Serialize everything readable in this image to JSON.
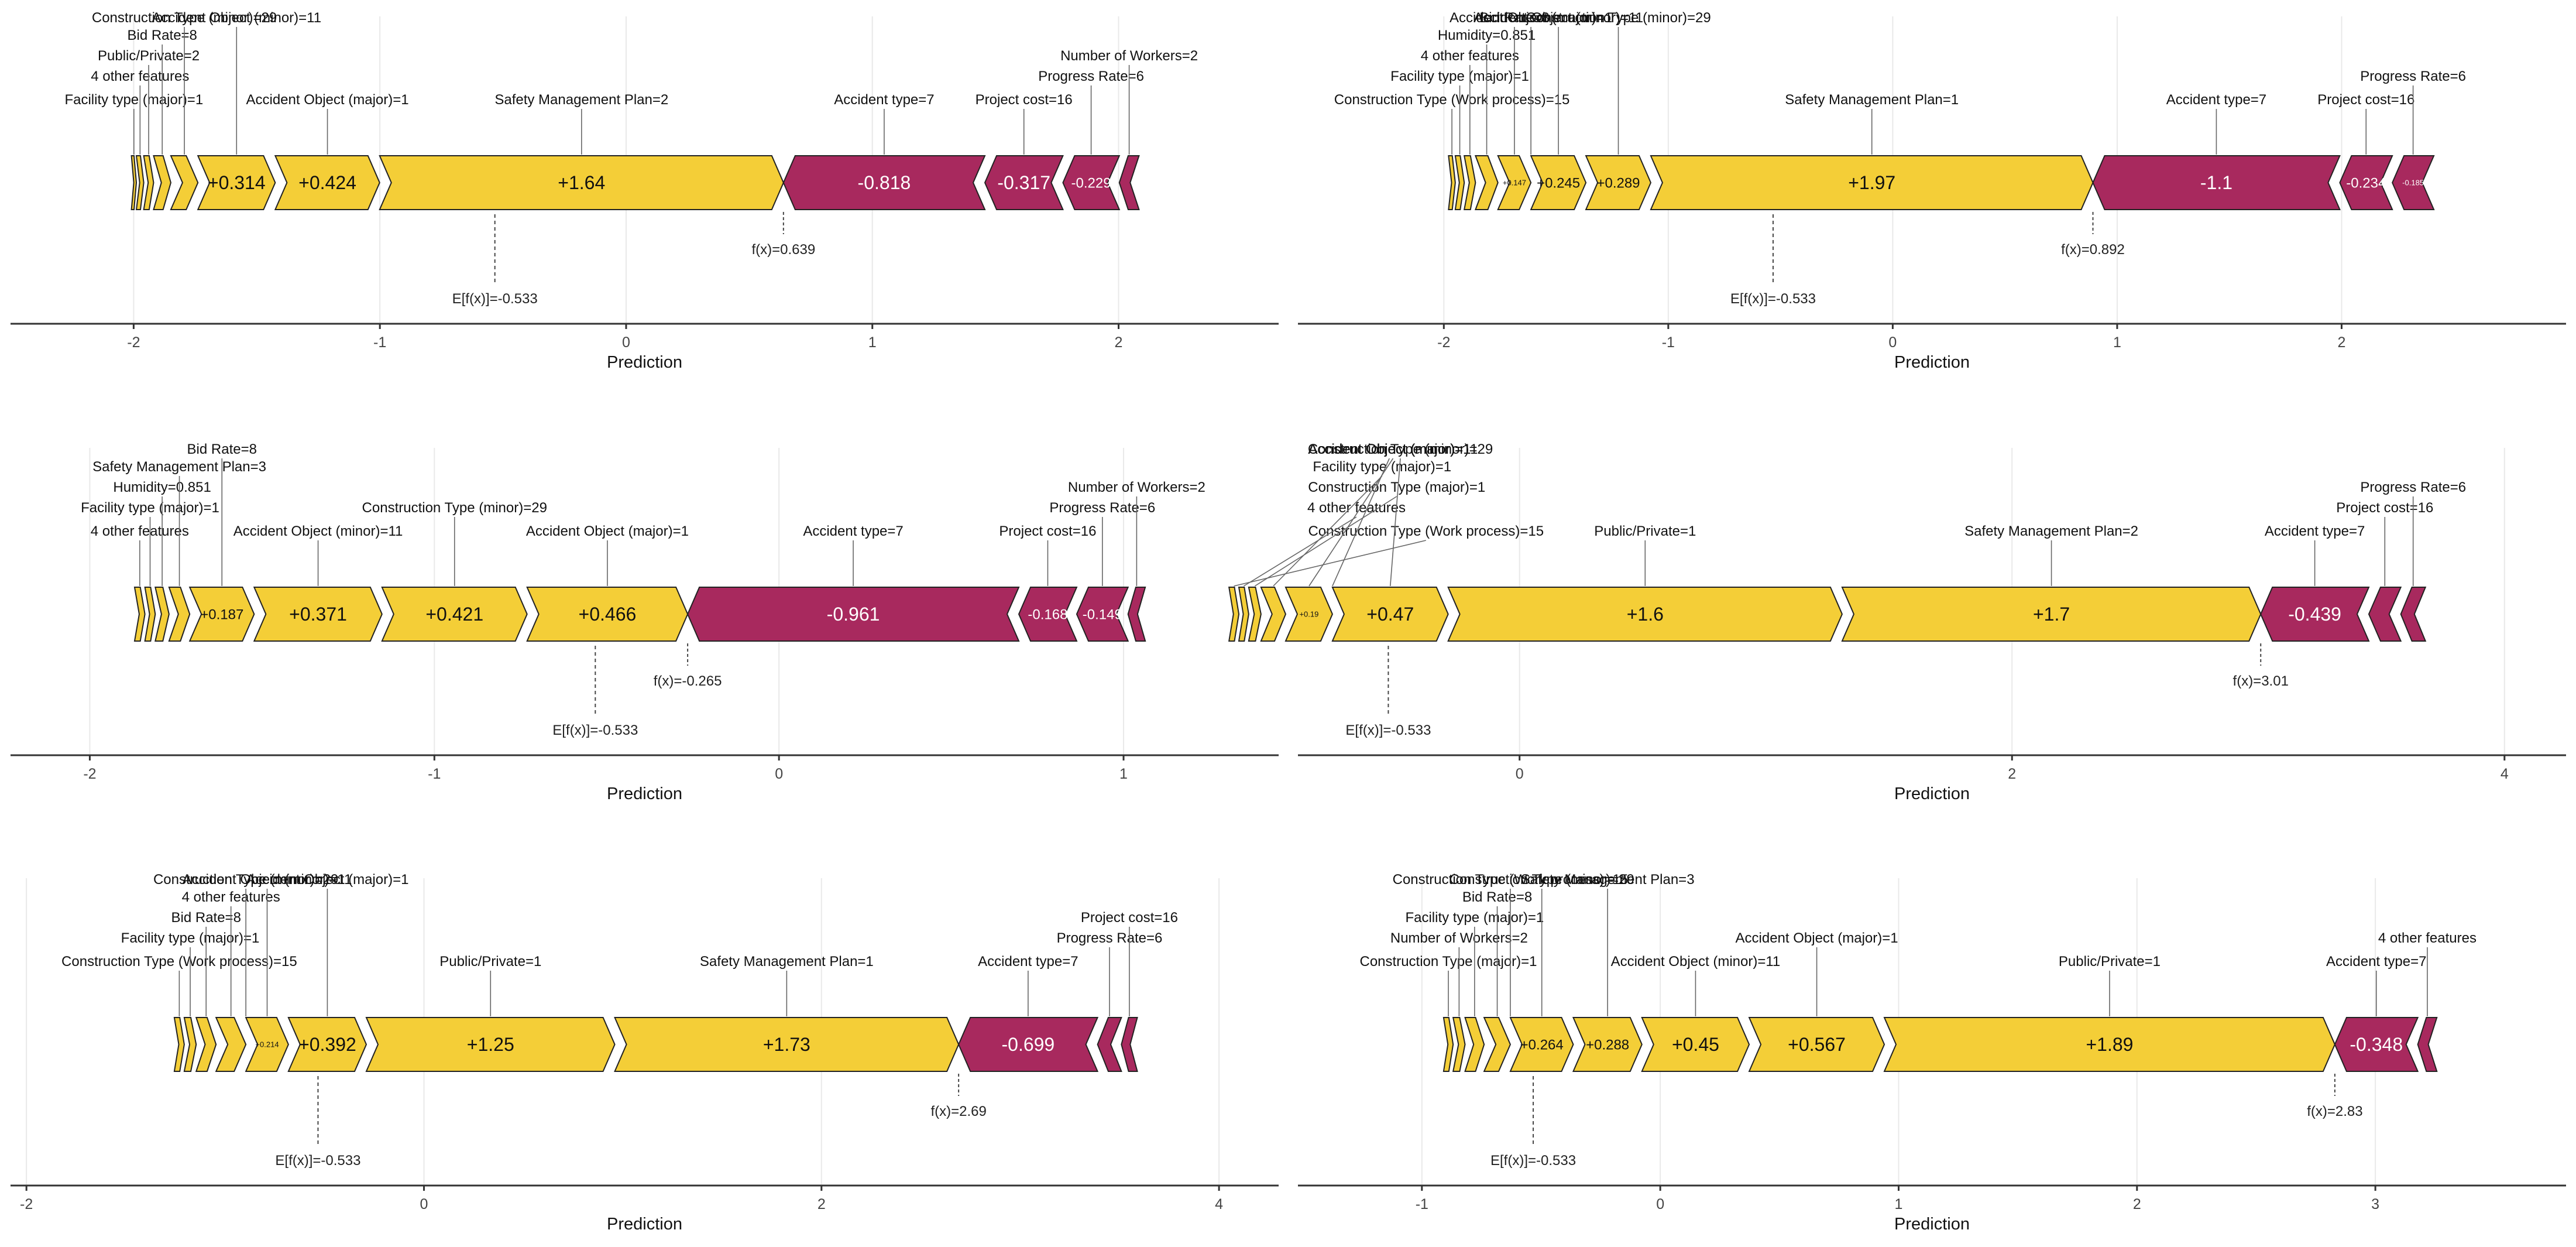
{
  "colors": {
    "positive": "#F4CE37",
    "negative": "#A8295E",
    "grid": "#e9e9e9",
    "axis": "#333333",
    "label_text": "#111111"
  },
  "chart_data": [
    {
      "type": "force",
      "xlabel": "Prediction",
      "xlim": [
        -2.5,
        2.65
      ],
      "xticks": [
        -2,
        -1,
        0,
        1,
        2
      ],
      "base": -0.533,
      "fx": 0.639,
      "base_label": "E[f(x)]=-0.533",
      "fx_label": "f(x)=0.639",
      "features": [
        {
          "name": "Facility type (major)=1",
          "value": 0.02,
          "bar_label": ""
        },
        {
          "name": "4 other features",
          "value": 0.03,
          "bar_label": ""
        },
        {
          "name": "Public/Private=2",
          "value": 0.04,
          "bar_label": ""
        },
        {
          "name": "Bid Rate=8",
          "value": 0.07,
          "bar_label": ""
        },
        {
          "name": "Construction Type (minor)=29",
          "value": 0.11,
          "bar_label": ""
        },
        {
          "name": "Accident Object (minor)=11",
          "value": 0.314,
          "bar_label": "+0.314"
        },
        {
          "name": "Accident Object (major)=1",
          "value": 0.424,
          "bar_label": "+0.424"
        },
        {
          "name": "Safety Management Plan=2",
          "value": 1.64,
          "bar_label": "+1.64"
        },
        {
          "name": "Accident type=7",
          "value": -0.818,
          "bar_label": "-0.818"
        },
        {
          "name": "Project cost=16",
          "value": -0.317,
          "bar_label": "-0.317"
        },
        {
          "name": "Progress Rate=6",
          "value": -0.229,
          "bar_label": "-0.229"
        },
        {
          "name": "Number of Workers=2",
          "value": -0.08,
          "bar_label": ""
        }
      ]
    },
    {
      "type": "force",
      "xlabel": "Prediction",
      "xlim": [
        -2.65,
        3.0
      ],
      "xticks": [
        -2,
        -1,
        0,
        1,
        2
      ],
      "base": -0.533,
      "fx": 0.892,
      "base_label": "E[f(x)]=-0.533",
      "fx_label": "f(x)=0.892",
      "features": [
        {
          "name": "Construction Type (Work process)=15",
          "value": 0.03,
          "bar_label": ""
        },
        {
          "name": "Facility type (major)=1",
          "value": 0.04,
          "bar_label": ""
        },
        {
          "name": "4 other features",
          "value": 0.05,
          "bar_label": ""
        },
        {
          "name": "Humidity=0.851",
          "value": 0.1,
          "bar_label": ""
        },
        {
          "name": "Bid Rate=8",
          "value": 0.147,
          "bar_label": "+0.147"
        },
        {
          "name": "Accident Object (minor)=11",
          "value": 0.245,
          "bar_label": "+0.245"
        },
        {
          "name": "Construction Type (minor)=29",
          "value": 0.289,
          "bar_label": "+0.289"
        },
        {
          "name": "Accident Object (major)=1",
          "value": 0.0,
          "bar_label": ""
        },
        {
          "name": "Safety Management Plan=1",
          "value": 1.97,
          "bar_label": "+1.97"
        },
        {
          "name": "Accident type=7",
          "value": -1.1,
          "bar_label": "-1.1"
        },
        {
          "name": "Project cost=16",
          "value": -0.234,
          "bar_label": "-0.234"
        },
        {
          "name": "Progress Rate=6",
          "value": -0.185,
          "bar_label": "-0.185"
        }
      ]
    },
    {
      "type": "force",
      "xlabel": "Prediction",
      "xlim": [
        -2.23,
        1.45
      ],
      "xticks": [
        -2,
        -1,
        0,
        1
      ],
      "base": -0.533,
      "fx": -0.265,
      "base_label": "E[f(x)]=-0.533",
      "fx_label": "f(x)=-0.265",
      "features": [
        {
          "name": "4 other features",
          "value": 0.03,
          "bar_label": ""
        },
        {
          "name": "Facility type (major)=1",
          "value": 0.03,
          "bar_label": ""
        },
        {
          "name": "Humidity=0.851",
          "value": 0.04,
          "bar_label": ""
        },
        {
          "name": "Safety Management Plan=3",
          "value": 0.06,
          "bar_label": ""
        },
        {
          "name": "Bid Rate=8",
          "value": 0.187,
          "bar_label": "+0.187"
        },
        {
          "name": "Accident Object (minor)=11",
          "value": 0.371,
          "bar_label": "+0.371"
        },
        {
          "name": "Construction Type (minor)=29",
          "value": 0.421,
          "bar_label": "+0.421"
        },
        {
          "name": "Accident Object (major)=1",
          "value": 0.466,
          "bar_label": "+0.466"
        },
        {
          "name": "Accident type=7",
          "value": -0.961,
          "bar_label": "-0.961"
        },
        {
          "name": "Project cost=16",
          "value": -0.168,
          "bar_label": "-0.168"
        },
        {
          "name": "Progress Rate=6",
          "value": -0.149,
          "bar_label": "-0.149"
        },
        {
          "name": "Number of Workers=2",
          "value": -0.05,
          "bar_label": ""
        }
      ]
    },
    {
      "type": "force",
      "xlabel": "Prediction",
      "xlim": [
        -0.9,
        4.25
      ],
      "xticks": [
        0,
        2,
        4
      ],
      "base": -0.533,
      "fx": 3.01,
      "base_label": "E[f(x)]=-0.533",
      "fx_label": "f(x)=3.01",
      "features": [
        {
          "name": "Construction Type (Work process)=15",
          "value": 0.04,
          "bar_label": ""
        },
        {
          "name": "4 other features",
          "value": 0.04,
          "bar_label": ""
        },
        {
          "name": "Construction Type (major)=1",
          "value": 0.05,
          "bar_label": ""
        },
        {
          "name": "Facility type (major)=1",
          "value": 0.1,
          "bar_label": ""
        },
        {
          "name": "Accident Object (minor)=11",
          "value": 0.19,
          "bar_label": "+0.19"
        },
        {
          "name": "Construction Type (minor)=29",
          "value": 0.47,
          "bar_label": "+0.47"
        },
        {
          "name": "Accident Object (major)=1",
          "value": 0.0,
          "bar_label": ""
        },
        {
          "name": "Public/Private=1",
          "value": 1.6,
          "bar_label": "+1.6"
        },
        {
          "name": "Safety Management Plan=2",
          "value": 1.7,
          "bar_label": "+1.7"
        },
        {
          "name": "Accident type=7",
          "value": -0.439,
          "bar_label": "-0.439"
        },
        {
          "name": "Project cost=16",
          "value": -0.13,
          "bar_label": ""
        },
        {
          "name": "Progress Rate=6",
          "value": -0.1,
          "bar_label": ""
        }
      ]
    },
    {
      "type": "force",
      "xlabel": "Prediction",
      "xlim": [
        -2.08,
        4.3
      ],
      "xticks": [
        -2,
        0,
        2,
        4
      ],
      "base": -0.533,
      "fx": 2.69,
      "base_label": "E[f(x)]=-0.533",
      "fx_label": "f(x)=2.69",
      "features": [
        {
          "name": "Construction Type (Work process)=15",
          "value": 0.05,
          "bar_label": ""
        },
        {
          "name": "Facility type (major)=1",
          "value": 0.06,
          "bar_label": ""
        },
        {
          "name": "Bid Rate=8",
          "value": 0.1,
          "bar_label": ""
        },
        {
          "name": "4 other features",
          "value": 0.15,
          "bar_label": ""
        },
        {
          "name": "Accident Object (minor)=11",
          "value": 0.214,
          "bar_label": "+0.214"
        },
        {
          "name": "Accident Object (major)=1",
          "value": 0.392,
          "bar_label": "+0.392"
        },
        {
          "name": "Construction Type (minor)=29",
          "value": 0.0,
          "bar_label": ""
        },
        {
          "name": "Public/Private=1",
          "value": 1.25,
          "bar_label": "+1.25"
        },
        {
          "name": "Safety Management Plan=1",
          "value": 1.73,
          "bar_label": "+1.73"
        },
        {
          "name": "Accident type=7",
          "value": -0.699,
          "bar_label": "-0.699"
        },
        {
          "name": "Progress Rate=6",
          "value": -0.12,
          "bar_label": ""
        },
        {
          "name": "Project cost=16",
          "value": -0.08,
          "bar_label": ""
        }
      ]
    },
    {
      "type": "force",
      "xlabel": "Prediction",
      "xlim": [
        -1.52,
        3.8
      ],
      "xticks": [
        -1,
        0,
        1,
        2,
        3
      ],
      "base": -0.533,
      "fx": 2.83,
      "base_label": "E[f(x)]=-0.533",
      "fx_label": "f(x)=2.83",
      "features": [
        {
          "name": "Construction Type (major)=1",
          "value": 0.04,
          "bar_label": ""
        },
        {
          "name": "Number of Workers=2",
          "value": 0.05,
          "bar_label": ""
        },
        {
          "name": "Facility type (major)=1",
          "value": 0.08,
          "bar_label": ""
        },
        {
          "name": "Bid Rate=8",
          "value": 0.11,
          "bar_label": ""
        },
        {
          "name": "Construction Type (minor)=29",
          "value": 0.264,
          "bar_label": "+0.264"
        },
        {
          "name": "Safety Management Plan=3",
          "value": 0.288,
          "bar_label": "+0.288"
        },
        {
          "name": "Accident Object (minor)=11",
          "value": 0.45,
          "bar_label": "+0.45"
        },
        {
          "name": "Accident Object (major)=1",
          "value": 0.567,
          "bar_label": "+0.567"
        },
        {
          "name": "Construction Type (Work process)=15",
          "value": 0.0,
          "bar_label": ""
        },
        {
          "name": "Public/Private=1",
          "value": 1.89,
          "bar_label": "+1.89"
        },
        {
          "name": "Accident type=7",
          "value": -0.348,
          "bar_label": "-0.348"
        },
        {
          "name": "4 other features",
          "value": -0.08,
          "bar_label": ""
        }
      ]
    }
  ]
}
